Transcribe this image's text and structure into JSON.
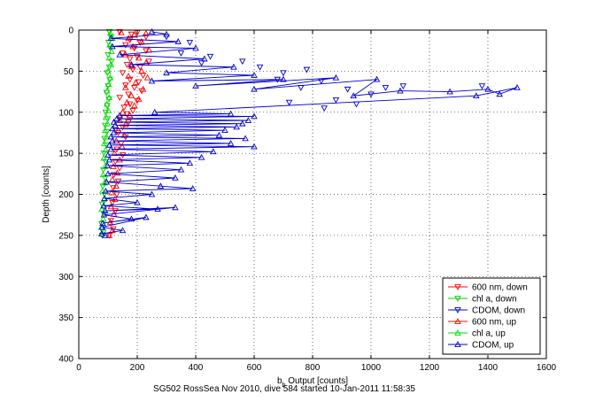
{
  "chart_data": {
    "type": "scatter",
    "title": "",
    "xlabel_main": "b",
    "xlabel_sub": "b",
    "xlabel_rest": " Output [counts]",
    "ylabel": "Depth [counts]",
    "caption": "SG502 RossSea Nov 2010, dive 584 started 10-Jan-2011 11:58:35",
    "xlim": [
      0,
      1600
    ],
    "ylim": [
      0,
      400
    ],
    "y_reversed": true,
    "grid": true,
    "grid_style": "dotted",
    "xticks": [
      0,
      200,
      400,
      600,
      800,
      1000,
      1200,
      1400,
      1600
    ],
    "yticks": [
      0,
      50,
      100,
      150,
      200,
      250,
      300,
      350,
      400
    ],
    "legend_position": "bottom-right",
    "series": [
      {
        "name": "600 nm, down",
        "color": "#ff0000",
        "marker": "triangle-down",
        "connected": false,
        "points": [
          [
            140,
            2
          ],
          [
            180,
            5
          ],
          [
            200,
            3
          ],
          [
            230,
            8
          ],
          [
            175,
            12
          ],
          [
            210,
            15
          ],
          [
            160,
            18
          ],
          [
            190,
            22
          ],
          [
            230,
            25
          ],
          [
            150,
            28
          ],
          [
            200,
            32
          ],
          [
            175,
            35
          ],
          [
            240,
            38
          ],
          [
            165,
            42
          ],
          [
            210,
            45
          ],
          [
            185,
            48
          ],
          [
            150,
            52
          ],
          [
            220,
            55
          ],
          [
            175,
            60
          ],
          [
            205,
            63
          ],
          [
            160,
            67
          ],
          [
            190,
            70
          ],
          [
            215,
            74
          ],
          [
            170,
            78
          ],
          [
            140,
            82
          ],
          [
            200,
            86
          ],
          [
            175,
            90
          ],
          [
            155,
            94
          ],
          [
            185,
            98
          ],
          [
            165,
            102
          ],
          [
            140,
            107
          ],
          [
            170,
            112
          ],
          [
            150,
            118
          ],
          [
            135,
            125
          ],
          [
            160,
            130
          ],
          [
            145,
            138
          ],
          [
            130,
            145
          ],
          [
            150,
            152
          ],
          [
            125,
            160
          ],
          [
            140,
            168
          ],
          [
            120,
            176
          ],
          [
            135,
            184
          ],
          [
            118,
            192
          ],
          [
            130,
            200
          ],
          [
            115,
            210
          ],
          [
            125,
            220
          ],
          [
            110,
            232
          ],
          [
            118,
            242
          ],
          [
            105,
            250
          ]
        ]
      },
      {
        "name": "chl a, down",
        "color": "#00cc00",
        "marker": "triangle-down",
        "connected": false,
        "points": [
          [
            105,
            2
          ],
          [
            110,
            8
          ],
          [
            102,
            15
          ],
          [
            108,
            22
          ],
          [
            100,
            30
          ],
          [
            112,
            38
          ],
          [
            104,
            45
          ],
          [
            98,
            52
          ],
          [
            106,
            60
          ],
          [
            100,
            68
          ],
          [
            95,
            76
          ],
          [
            103,
            84
          ],
          [
            97,
            92
          ],
          [
            92,
            100
          ],
          [
            99,
            108
          ],
          [
            90,
            116
          ],
          [
            96,
            124
          ],
          [
            88,
            132
          ],
          [
            94,
            140
          ],
          [
            86,
            150
          ],
          [
            92,
            160
          ],
          [
            84,
            170
          ],
          [
            90,
            180
          ],
          [
            82,
            190
          ],
          [
            88,
            200
          ],
          [
            80,
            212
          ],
          [
            86,
            224
          ],
          [
            78,
            236
          ],
          [
            84,
            246
          ],
          [
            80,
            250
          ]
        ]
      },
      {
        "name": "CDOM, down",
        "color": "#0000cc",
        "marker": "triangle-down",
        "connected": false,
        "points": [
          [
            300,
            8
          ],
          [
            380,
            15
          ],
          [
            350,
            28
          ],
          [
            450,
            32
          ],
          [
            420,
            40
          ],
          [
            560,
            38
          ],
          [
            620,
            45
          ],
          [
            700,
            52
          ],
          [
            780,
            48
          ],
          [
            680,
            60
          ],
          [
            830,
            62
          ],
          [
            760,
            70
          ],
          [
            920,
            72
          ],
          [
            1000,
            78
          ],
          [
            880,
            85
          ],
          [
            950,
            90
          ],
          [
            720,
            88
          ],
          [
            840,
            95
          ],
          [
            1050,
            70
          ],
          [
            1110,
            68
          ],
          [
            1380,
            68
          ]
        ]
      },
      {
        "name": "600 nm, up",
        "color": "#ff0000",
        "marker": "triangle-up",
        "connected": false,
        "points": [
          [
            145,
            3
          ],
          [
            190,
            6
          ],
          [
            230,
            4
          ],
          [
            170,
            10
          ],
          [
            215,
            14
          ],
          [
            185,
            20
          ],
          [
            240,
            24
          ],
          [
            160,
            30
          ],
          [
            205,
            34
          ],
          [
            230,
            40
          ],
          [
            180,
            44
          ],
          [
            215,
            50
          ],
          [
            170,
            56
          ],
          [
            235,
            58
          ],
          [
            195,
            64
          ],
          [
            160,
            70
          ],
          [
            220,
            72
          ],
          [
            180,
            80
          ],
          [
            205,
            84
          ],
          [
            165,
            88
          ],
          [
            190,
            92
          ],
          [
            150,
            100
          ],
          [
            175,
            104
          ],
          [
            140,
            110
          ],
          [
            160,
            115
          ],
          [
            135,
            122
          ],
          [
            155,
            128
          ],
          [
            128,
            135
          ],
          [
            148,
            142
          ],
          [
            122,
            150
          ],
          [
            140,
            158
          ],
          [
            118,
            166
          ],
          [
            132,
            174
          ],
          [
            115,
            182
          ],
          [
            128,
            190
          ],
          [
            112,
            198
          ],
          [
            124,
            206
          ],
          [
            110,
            215
          ],
          [
            120,
            224
          ],
          [
            108,
            234
          ],
          [
            115,
            244
          ],
          [
            104,
            250
          ]
        ]
      },
      {
        "name": "chl a, up",
        "color": "#00dd00",
        "marker": "triangle-up",
        "connected": false,
        "points": [
          [
            108,
            4
          ],
          [
            115,
            10
          ],
          [
            106,
            18
          ],
          [
            112,
            26
          ],
          [
            104,
            34
          ],
          [
            110,
            42
          ],
          [
            100,
            50
          ],
          [
            108,
            58
          ],
          [
            102,
            66
          ],
          [
            97,
            74
          ],
          [
            104,
            82
          ],
          [
            96,
            90
          ],
          [
            101,
            98
          ],
          [
            93,
            106
          ],
          [
            98,
            114
          ],
          [
            90,
            122
          ],
          [
            95,
            130
          ],
          [
            87,
            138
          ],
          [
            92,
            146
          ],
          [
            85,
            156
          ],
          [
            90,
            166
          ],
          [
            83,
            176
          ],
          [
            88,
            186
          ],
          [
            81,
            196
          ],
          [
            86,
            206
          ],
          [
            79,
            218
          ],
          [
            84,
            230
          ],
          [
            77,
            240
          ],
          [
            82,
            248
          ]
        ]
      },
      {
        "name": "CDOM, up",
        "color": "#0000cc",
        "marker": "triangle-up",
        "connected": true,
        "points": [
          [
            250,
            2
          ],
          [
            300,
            5
          ],
          [
            110,
            10
          ],
          [
            340,
            14
          ],
          [
            115,
            20
          ],
          [
            400,
            22
          ],
          [
            140,
            30
          ],
          [
            430,
            35
          ],
          [
            180,
            42
          ],
          [
            530,
            45
          ],
          [
            300,
            52
          ],
          [
            600,
            55
          ],
          [
            250,
            62
          ],
          [
            700,
            60
          ],
          [
            400,
            68
          ],
          [
            880,
            58
          ],
          [
            600,
            72
          ],
          [
            1020,
            60
          ],
          [
            940,
            80
          ],
          [
            1100,
            74
          ],
          [
            1270,
            75
          ],
          [
            1400,
            72
          ],
          [
            1440,
            78
          ],
          [
            1500,
            70
          ],
          [
            1360,
            80
          ],
          [
            260,
            100
          ],
          [
            520,
            102
          ],
          [
            140,
            104
          ],
          [
            600,
            105
          ],
          [
            130,
            108
          ],
          [
            580,
            110
          ],
          [
            120,
            112
          ],
          [
            560,
            114
          ],
          [
            125,
            116
          ],
          [
            540,
            118
          ],
          [
            115,
            120
          ],
          [
            500,
            122
          ],
          [
            120,
            125
          ],
          [
            480,
            128
          ],
          [
            110,
            130
          ],
          [
            570,
            132
          ],
          [
            115,
            135
          ],
          [
            520,
            138
          ],
          [
            105,
            140
          ],
          [
            600,
            142
          ],
          [
            110,
            145
          ],
          [
            460,
            148
          ],
          [
            100,
            152
          ],
          [
            420,
            155
          ],
          [
            105,
            158
          ],
          [
            380,
            162
          ],
          [
            98,
            165
          ],
          [
            350,
            170
          ],
          [
            100,
            175
          ],
          [
            330,
            180
          ],
          [
            95,
            185
          ],
          [
            280,
            190
          ],
          [
            390,
            193
          ],
          [
            92,
            196
          ],
          [
            250,
            200
          ],
          [
            88,
            205
          ],
          [
            200,
            210
          ],
          [
            85,
            214
          ],
          [
            270,
            218
          ],
          [
            90,
            220
          ],
          [
            330,
            216
          ],
          [
            86,
            225
          ],
          [
            180,
            230
          ],
          [
            82,
            235
          ],
          [
            230,
            228
          ],
          [
            80,
            240
          ],
          [
            150,
            244
          ],
          [
            78,
            248
          ],
          [
            90,
            250
          ]
        ]
      }
    ]
  }
}
